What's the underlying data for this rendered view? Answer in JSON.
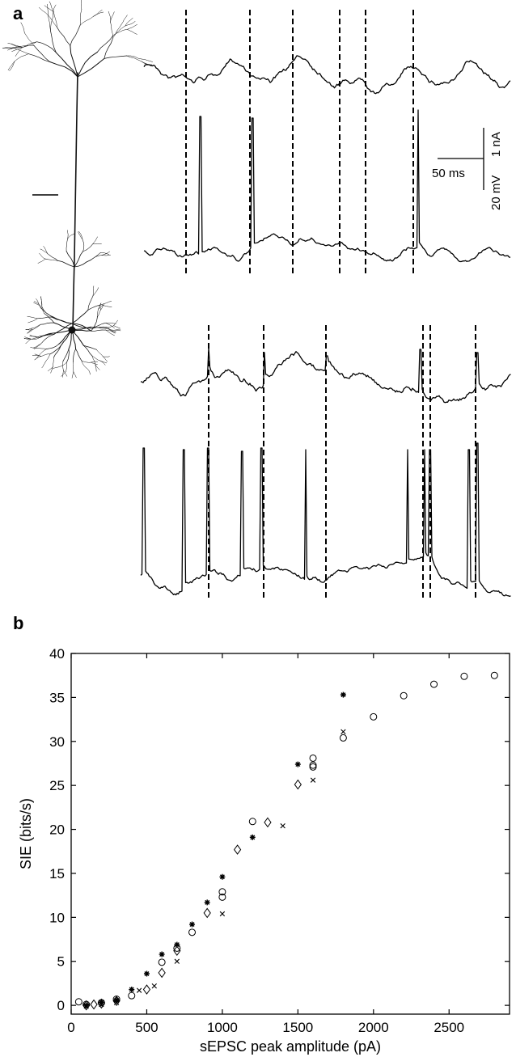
{
  "panel_a": {
    "label": "a",
    "scale_bar": {
      "time_label": "50 ms",
      "voltage_label": "20 mV",
      "current_label": "1 nA"
    }
  },
  "panel_b": {
    "label": "b"
  },
  "chart_data": {
    "type": "scatter",
    "title": "",
    "xlabel": "sEPSC peak amplitude (pA)",
    "ylabel": "SIE (bits/s)",
    "xlim": [
      0,
      2900
    ],
    "ylim": [
      -1,
      40
    ],
    "xticks": [
      0,
      500,
      1000,
      1500,
      2000,
      2500
    ],
    "yticks": [
      0,
      5,
      10,
      15,
      20,
      25,
      30,
      35,
      40
    ],
    "grid": false,
    "series": [
      {
        "marker": "circle",
        "points": [
          [
            50,
            0.4
          ],
          [
            100,
            0.1
          ],
          [
            200,
            0.3
          ],
          [
            300,
            0.7
          ],
          [
            400,
            1.1
          ],
          [
            600,
            4.9
          ],
          [
            700,
            6.5
          ],
          [
            800,
            8.3
          ],
          [
            1000,
            12.3
          ],
          [
            1000,
            12.9
          ],
          [
            1200,
            20.9
          ],
          [
            1600,
            27.1
          ],
          [
            1600,
            27.3
          ],
          [
            1600,
            28.1
          ],
          [
            1800,
            30.4
          ],
          [
            2000,
            32.8
          ],
          [
            2200,
            35.2
          ],
          [
            2400,
            36.5
          ],
          [
            2600,
            37.4
          ],
          [
            2800,
            37.5
          ]
        ]
      },
      {
        "marker": "asterisk",
        "points": [
          [
            100,
            0.0
          ],
          [
            200,
            0.3
          ],
          [
            300,
            0.6
          ],
          [
            400,
            1.8
          ],
          [
            500,
            3.6
          ],
          [
            600,
            5.8
          ],
          [
            700,
            6.9
          ],
          [
            800,
            9.2
          ],
          [
            900,
            11.7
          ],
          [
            1000,
            14.6
          ],
          [
            1200,
            19.1
          ],
          [
            1500,
            27.4
          ],
          [
            1800,
            35.3
          ]
        ]
      },
      {
        "marker": "diamond",
        "points": [
          [
            100,
            0.0
          ],
          [
            150,
            0.1
          ],
          [
            200,
            0.2
          ],
          [
            300,
            0.5
          ],
          [
            500,
            1.8
          ],
          [
            600,
            3.7
          ],
          [
            700,
            6.2
          ],
          [
            900,
            10.5
          ],
          [
            1100,
            17.7
          ],
          [
            1300,
            20.8
          ],
          [
            1500,
            25.1
          ]
        ]
      },
      {
        "marker": "cross",
        "points": [
          [
            100,
            -0.1
          ],
          [
            200,
            0.1
          ],
          [
            300,
            0.3
          ],
          [
            450,
            1.7
          ],
          [
            550,
            2.2
          ],
          [
            700,
            5.0
          ],
          [
            1000,
            10.4
          ],
          [
            1400,
            20.4
          ],
          [
            1600,
            25.6
          ],
          [
            1800,
            31.1
          ]
        ]
      }
    ]
  }
}
